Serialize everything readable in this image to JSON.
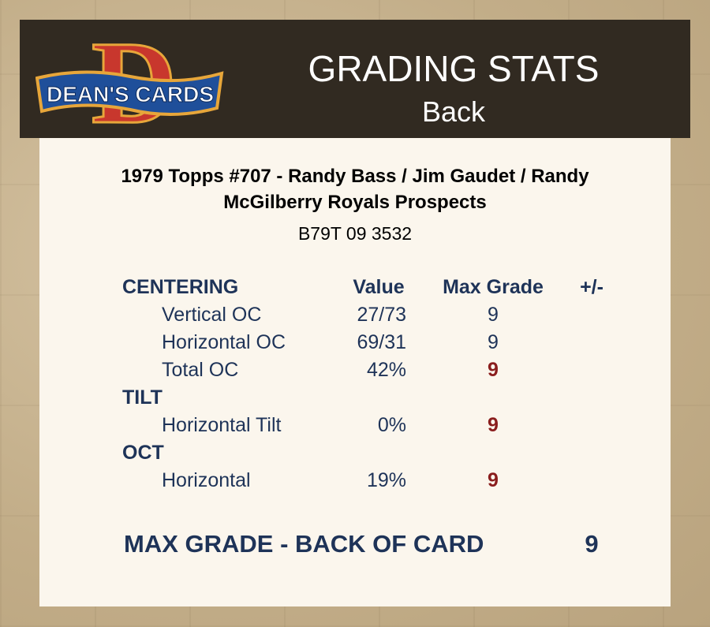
{
  "header": {
    "logo_text": "DEAN'S CARDS",
    "logo_letter": "D",
    "title": "GRADING STATS",
    "subtitle": "Back"
  },
  "card": {
    "name": "1979 Topps #707  -  Randy Bass / Jim Gaudet / Randy McGilberry Royals Prospects",
    "cert": "B79T 09 3532"
  },
  "columns": {
    "category": "CENTERING",
    "value": "Value",
    "max_grade": "Max Grade",
    "plus_minus": "+/-"
  },
  "centering": [
    {
      "label": "Vertical OC",
      "value": "27/73",
      "grade": "9"
    },
    {
      "label": "Horizontal OC",
      "value": "69/31",
      "grade": "9"
    },
    {
      "label": "Total OC",
      "value": "42%",
      "grade": "9"
    }
  ],
  "tilt": {
    "heading": "TILT",
    "rows": [
      {
        "label": "Horizontal Tilt",
        "value": "0%",
        "grade": "9"
      }
    ]
  },
  "oct": {
    "heading": "OCT",
    "rows": [
      {
        "label": "Horizontal",
        "value": "19%",
        "grade": "9"
      }
    ]
  },
  "summary": {
    "label": "MAX GRADE - BACK OF CARD",
    "value": "9"
  },
  "colors": {
    "header_bg": "#312a21",
    "panel_bg": "#fbf6ed",
    "text_navy": "#1e3358",
    "grade_red": "#8a1d1d",
    "logo_red": "#c8372d",
    "logo_blue": "#1f4f9a"
  }
}
